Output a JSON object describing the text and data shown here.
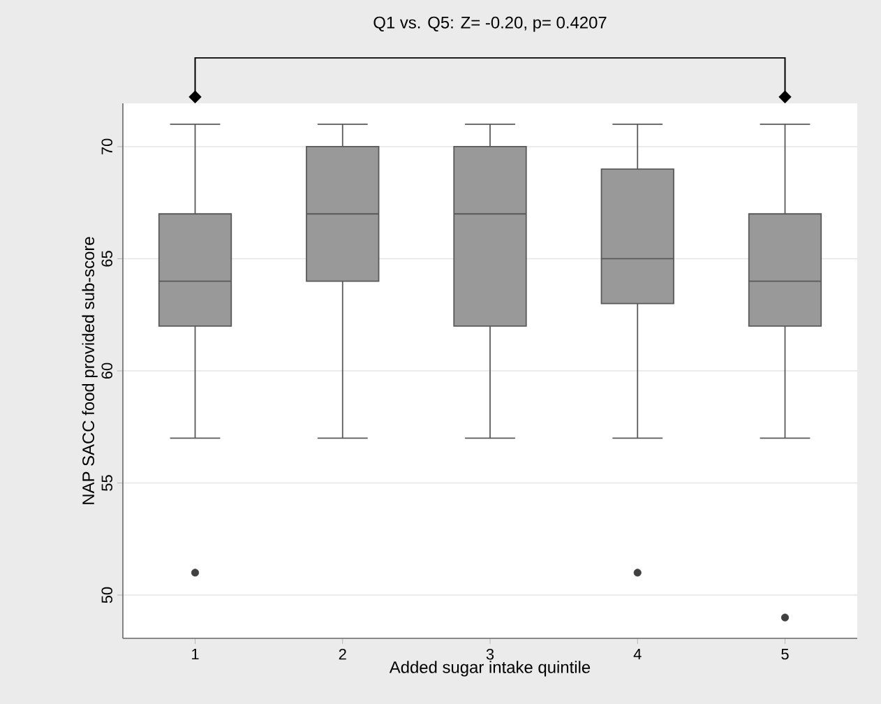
{
  "chart_data": {
    "type": "box",
    "xlabel": "Added sugar intake quintile",
    "ylabel": "NAP SACC food provided sub-score",
    "annotations": [
      "Q1 vs. Q5: Z= -0.20, p= 0.4207"
    ],
    "categories": [
      "1",
      "2",
      "3",
      "4",
      "5"
    ],
    "color": "#999999",
    "boxes": [
      {
        "low": 57,
        "q1": 62,
        "median": 64,
        "q3": 67,
        "high": 71,
        "outliers": [
          51
        ]
      },
      {
        "low": 57,
        "q1": 64,
        "median": 67,
        "q3": 70,
        "high": 71
      },
      {
        "low": 57,
        "q1": 62,
        "median": 67,
        "q3": 70,
        "high": 71
      },
      {
        "low": 57,
        "q1": 63,
        "median": 65,
        "q3": 69,
        "high": 71,
        "outliers": [
          51
        ]
      },
      {
        "low": 57,
        "q1": 62,
        "median": 64,
        "q3": 67,
        "high": 71,
        "outliers": [
          49
        ]
      }
    ],
    "ylim": [
      48.07,
      71.93
    ],
    "yticks": [
      50,
      55,
      60,
      65,
      70
    ],
    "grid": "y"
  }
}
